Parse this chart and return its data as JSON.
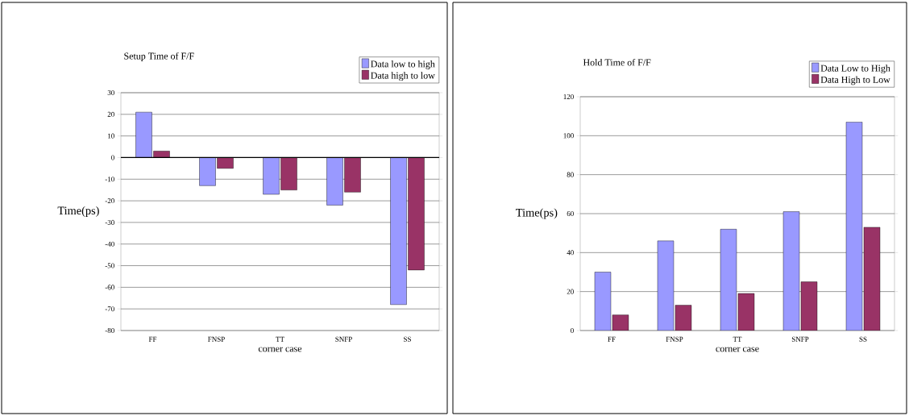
{
  "chart_data": [
    {
      "type": "bar",
      "title": "Setup Time of F/F",
      "xlabel": "corner case",
      "ylabel": "Time(ps)",
      "categories": [
        "FF",
        "FNSP",
        "TT",
        "SNFP",
        "SS"
      ],
      "series": [
        {
          "name": "Data low to high",
          "color": "#9999ff",
          "values": [
            21,
            -13,
            -17,
            -22,
            -68
          ]
        },
        {
          "name": "Data high to low",
          "color": "#993366",
          "values": [
            3,
            -5,
            -15,
            -16,
            -52
          ]
        }
      ],
      "ylim": [
        -80,
        30
      ],
      "yticks": [
        -80,
        -70,
        -60,
        -50,
        -40,
        -30,
        -20,
        -10,
        0,
        10,
        20,
        30
      ],
      "grid": "y",
      "legend": "top right"
    },
    {
      "type": "bar",
      "title": "Hold Time of F/F",
      "xlabel": "corner case",
      "ylabel": "Time(ps)",
      "categories": [
        "FF",
        "FNSP",
        "TT",
        "SNFP",
        "SS"
      ],
      "series": [
        {
          "name": "Data Low to High",
          "color": "#9999ff",
          "values": [
            30,
            46,
            52,
            61,
            107
          ]
        },
        {
          "name": "Data High to Low",
          "color": "#993366",
          "values": [
            8,
            13,
            19,
            25,
            53
          ]
        }
      ],
      "ylim": [
        0,
        120
      ],
      "yticks": [
        0,
        20,
        40,
        60,
        80,
        100,
        120
      ],
      "grid": "y",
      "legend": "top right"
    }
  ]
}
